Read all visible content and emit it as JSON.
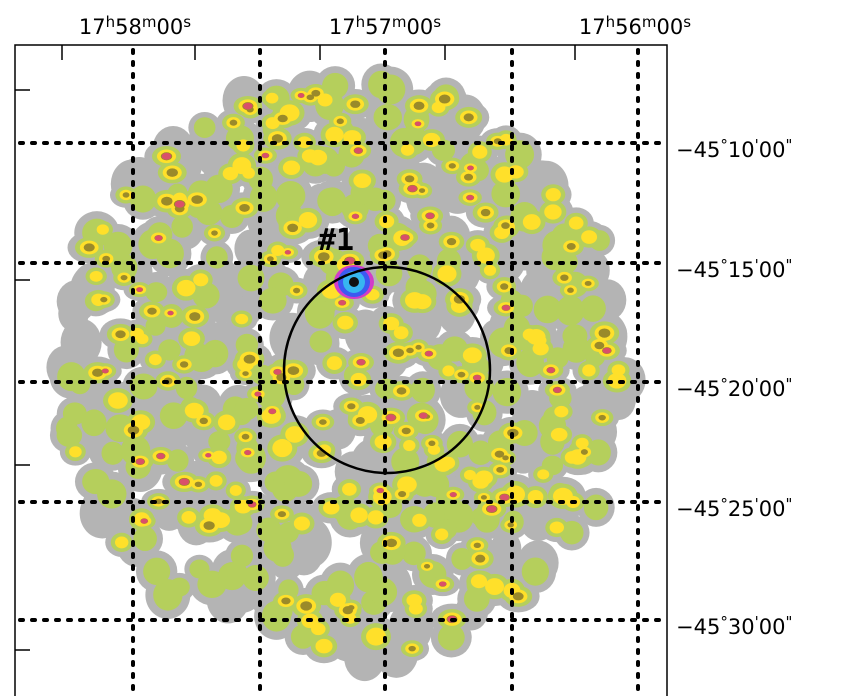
{
  "x_ticks": [
    "17h58m00s",
    "17h57m00s",
    "17h56m00s"
  ],
  "y_ticks": [
    "−45°10'00\"",
    "−45°15'00\"",
    "−45°20'00\"",
    "−45°25'00\"",
    "−45°30'00\""
  ],
  "annotation": "#1"
}
